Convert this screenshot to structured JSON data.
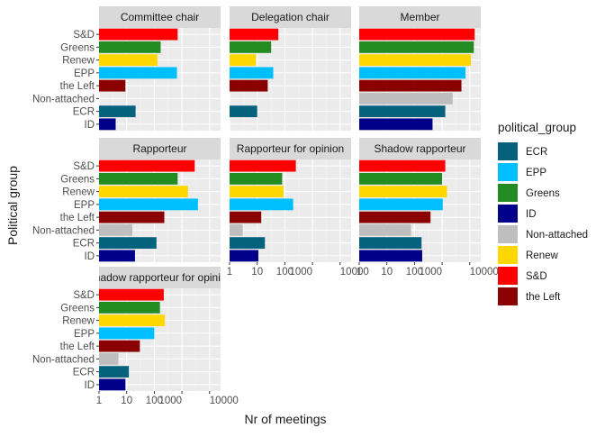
{
  "chart_data": {
    "type": "bar",
    "orientation": "horizontal",
    "x_scale": "log10",
    "xlim": [
      1,
      25000
    ],
    "xlabel": "Nr of meetings",
    "ylabel": "Political group",
    "x_ticks": [
      {
        "value": 1,
        "label": "1"
      },
      {
        "value": 10,
        "label": "10"
      },
      {
        "value": 100,
        "label": "100"
      },
      {
        "value": 1000,
        "label": "1000"
      },
      {
        "value": 10000,
        "label": "10000"
      }
    ],
    "categories": [
      "S&D",
      "Greens",
      "Renew",
      "EPP",
      "the Left",
      "Non-attached",
      "ECR",
      "ID"
    ],
    "facet_layout": "3 columns, facet_wrap",
    "panels": [
      {
        "title": "Committee chair",
        "values": {
          "S&D": 700,
          "Greens": 170,
          "Renew": 130,
          "EPP": 660,
          "the Left": 9,
          "Non-attached": null,
          "ECR": 21,
          "ID": 4
        }
      },
      {
        "title": "Delegation chair",
        "values": {
          "S&D": 58,
          "Greens": 32,
          "Renew": 9,
          "EPP": 38,
          "the Left": 24,
          "Non-attached": null,
          "ECR": 10,
          "ID": null
        }
      },
      {
        "title": "Member",
        "values": {
          "S&D": 15000,
          "Greens": 14000,
          "Renew": 11000,
          "EPP": 7000,
          "the Left": 5000,
          "Non-attached": 2400,
          "ECR": 1300,
          "ID": 450
        }
      },
      {
        "title": "Rapporteur",
        "values": {
          "S&D": 2900,
          "Greens": 700,
          "Renew": 1650,
          "EPP": 3800,
          "the Left": 230,
          "Non-attached": 16,
          "ECR": 120,
          "ID": 20
        }
      },
      {
        "title": "Rapporteur for opinion",
        "values": {
          "S&D": 250,
          "Greens": 80,
          "Renew": 90,
          "EPP": 200,
          "the Left": 14,
          "Non-attached": 3,
          "ECR": 19,
          "ID": 11
        }
      },
      {
        "title": "Shadow rapporteur",
        "values": {
          "S&D": 1300,
          "Greens": 1000,
          "Renew": 1500,
          "EPP": 1050,
          "the Left": 380,
          "Non-attached": 75,
          "ECR": 180,
          "ID": 190
        }
      },
      {
        "title": "Shadow rapporteur for opinion",
        "values": {
          "S&D": 220,
          "Greens": 160,
          "Renew": 240,
          "EPP": 100,
          "the Left": 30,
          "Non-attached": 5,
          "ECR": 12,
          "ID": 9
        }
      }
    ],
    "legend": {
      "title": "political_group",
      "position": "right",
      "items": [
        {
          "name": "ECR",
          "color": "#05627c"
        },
        {
          "name": "EPP",
          "color": "#00bfff"
        },
        {
          "name": "Greens",
          "color": "#228b22"
        },
        {
          "name": "ID",
          "color": "#00008b"
        },
        {
          "name": "Non-attached",
          "color": "#bebebe"
        },
        {
          "name": "Renew",
          "color": "#ffd700"
        },
        {
          "name": "S&D",
          "color": "#ff0000"
        },
        {
          "name": "the Left",
          "color": "#8b0000"
        }
      ]
    },
    "grid": true
  }
}
